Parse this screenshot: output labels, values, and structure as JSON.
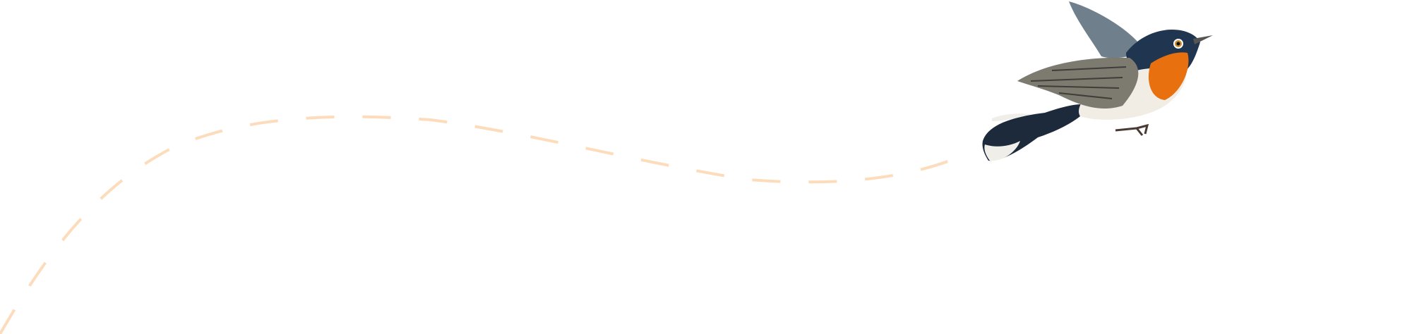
{
  "colors": {
    "background": "#ffffff",
    "flight_path": "#fddcbc",
    "bird_throat": "#e8700f",
    "bird_back": "#1f3550",
    "bird_wing": "#7d7a70",
    "bird_belly": "#f1ede4"
  },
  "illustration": {
    "subject": "bird-icon",
    "path_style": "dashed"
  }
}
